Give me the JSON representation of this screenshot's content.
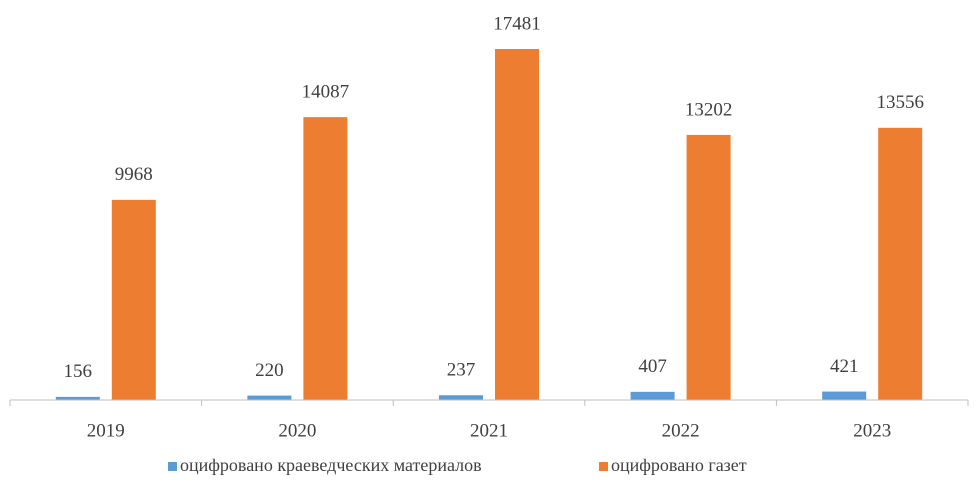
{
  "chart_data": {
    "type": "bar",
    "categories": [
      "2019",
      "2020",
      "2021",
      "2022",
      "2023"
    ],
    "series": [
      {
        "name": "оцифровано краеведческих материалов",
        "color": "#5b9bd5",
        "values": [
          156,
          220,
          237,
          407,
          421
        ]
      },
      {
        "name": "оцифровано газет",
        "color": "#ed7d31",
        "values": [
          9968,
          14087,
          17481,
          13202,
          13556
        ]
      }
    ]
  }
}
